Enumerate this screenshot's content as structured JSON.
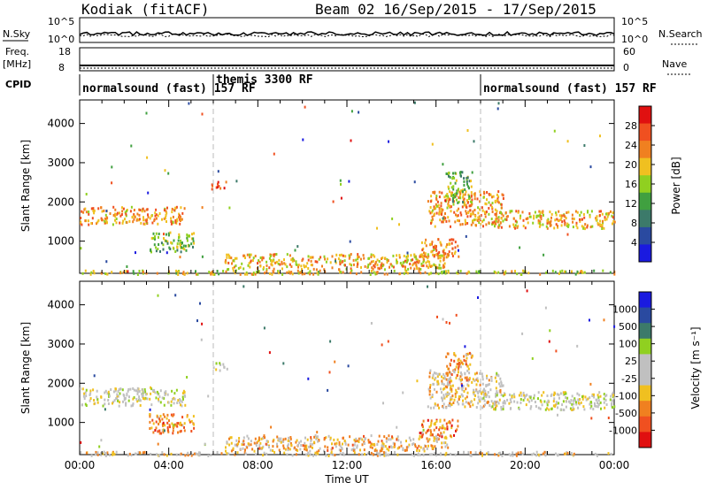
{
  "header": {
    "title_left": "Kodiak (fitACF)",
    "title_right": "Beam 02   16/Sep/2015 - 17/Sep/2015"
  },
  "status_panels": {
    "nsky_label": "N.Sky",
    "nsky_ticks": [
      "10^5",
      "10^0"
    ],
    "nsearch_label": "N.Search",
    "nsearch_ticks": [
      "10^5",
      "10^0"
    ],
    "freq_label": "Freq.",
    "freq_units": "[MHz]",
    "freq_ticks": [
      "18",
      "8"
    ],
    "nave_label": "Nave",
    "nave_ticks": [
      "60",
      "0"
    ],
    "cpid_label": "CPID"
  },
  "cpid_segments": [
    {
      "name": "normalsound (fast) 157 RF",
      "start": 0.0,
      "end": 6.0
    },
    {
      "name": "themis 3300 RF",
      "start": 6.0,
      "end": 18.0
    },
    {
      "name": "normalsound (fast) 157 RF",
      "start": 18.0,
      "end": 24.0
    }
  ],
  "chart_data": [
    {
      "type": "heatmap",
      "quantity": "power",
      "ylabel": "Slant Range [km]",
      "ylim": [
        180,
        4600
      ],
      "y_ticks": [
        "1000",
        "2000",
        "3000",
        "4000"
      ],
      "colorbar_label": "Power [dB]",
      "colorbar_ticks": [
        "28",
        "24",
        "20",
        "16",
        "12",
        "8",
        "4"
      ],
      "colorbar_colors": [
        "#e01010",
        "#f05020",
        "#f08020",
        "#f0c020",
        "#90d020",
        "#40a040",
        "#3c7a6a",
        "#2a4aa0",
        "#1a1ae0"
      ],
      "patches": [
        {
          "t0": 0.0,
          "t1": 4.7,
          "r0": 1450,
          "r1": 1900,
          "level": 0.3
        },
        {
          "t0": 3.1,
          "t1": 5.1,
          "r0": 750,
          "r1": 1250,
          "level": 0.55
        },
        {
          "t0": 5.9,
          "t1": 6.6,
          "r0": 2350,
          "r1": 2550,
          "level": 0.15
        },
        {
          "t0": 6.5,
          "t1": 16.5,
          "r0": 300,
          "r1": 700,
          "level": 0.35
        },
        {
          "t0": 15.2,
          "t1": 17.0,
          "r0": 600,
          "r1": 1100,
          "level": 0.3
        },
        {
          "t0": 15.6,
          "t1": 19.0,
          "r0": 1400,
          "r1": 2300,
          "level": 0.3
        },
        {
          "t0": 16.4,
          "t1": 17.6,
          "r0": 2000,
          "r1": 2800,
          "level": 0.55
        },
        {
          "t0": 18.5,
          "t1": 24.0,
          "r0": 1350,
          "r1": 1800,
          "level": 0.35
        },
        {
          "t0": 0.0,
          "t1": 24.0,
          "r0": 180,
          "r1": 280,
          "level": 0.4
        }
      ]
    },
    {
      "type": "heatmap",
      "quantity": "velocity",
      "xlabel": "Time UT",
      "ylabel": "Slant Range [km]",
      "ylim": [
        180,
        4600
      ],
      "xlim": [
        0,
        24
      ],
      "x_ticks": [
        "00:00",
        "04:00",
        "08:00",
        "12:00",
        "16:00",
        "20:00",
        "00:00"
      ],
      "y_ticks": [
        "1000",
        "2000",
        "3000",
        "4000"
      ],
      "colorbar_label": "Velocity [m s⁻¹]",
      "colorbar_ticks": [
        "1000",
        "500",
        "100",
        "25",
        "-25",
        "-100",
        "-500",
        "-1000"
      ],
      "colorbar_colors": [
        "#1a1ae0",
        "#2a4aa0",
        "#3c7a6a",
        "#90d020",
        "#c0c0c0",
        "#c0c0c0",
        "#f0c020",
        "#f08020",
        "#f05020",
        "#e01010"
      ],
      "patches": [
        {
          "t0": 0.0,
          "t1": 4.7,
          "r0": 1450,
          "r1": 1900,
          "level": 0.5
        },
        {
          "t0": 3.1,
          "t1": 5.1,
          "r0": 750,
          "r1": 1250,
          "level": 0.75
        },
        {
          "t0": 5.9,
          "t1": 6.6,
          "r0": 2350,
          "r1": 2550,
          "level": 0.5
        },
        {
          "t0": 6.5,
          "t1": 16.5,
          "r0": 300,
          "r1": 700,
          "level": 0.65
        },
        {
          "t0": 15.2,
          "t1": 17.0,
          "r0": 600,
          "r1": 1100,
          "level": 0.75
        },
        {
          "t0": 15.6,
          "t1": 19.0,
          "r0": 1400,
          "r1": 2300,
          "level": 0.6
        },
        {
          "t0": 16.4,
          "t1": 17.6,
          "r0": 2000,
          "r1": 2800,
          "level": 0.7
        },
        {
          "t0": 18.5,
          "t1": 24.0,
          "r0": 1350,
          "r1": 1800,
          "level": 0.5
        },
        {
          "t0": 0.0,
          "t1": 24.0,
          "r0": 180,
          "r1": 280,
          "level": 0.6
        }
      ]
    }
  ]
}
